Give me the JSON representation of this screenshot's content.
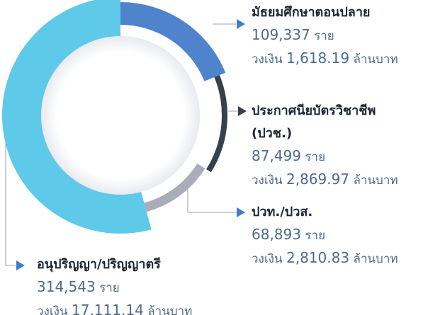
{
  "chart_data": {
    "type": "donut",
    "categories": [
      "มัธยมศึกษาตอนปลาย",
      "ประกาศนียบัตรวิชาชีพ (ปวช.)",
      "ปวท./ปวส.",
      "อนุปริญญา/ปริญญาตรี"
    ],
    "values": [
      109337,
      87499,
      68893,
      314543
    ],
    "value_labels": [
      "109,337",
      "87,499",
      "68,893",
      "314,543"
    ],
    "count_unit": "ราย",
    "amounts": [
      1618.19,
      2869.97,
      2810.83,
      17111.14
    ],
    "amount_labels": [
      "1,618.19",
      "2,869.97",
      "2,810.83",
      "17,111.14"
    ],
    "amount_prefix": "วงเงิน",
    "amount_unit": "ล้านบาท",
    "colors": [
      "#4f83cc",
      "#36414d",
      "#a9adb9",
      "#5ec9e8"
    ]
  }
}
